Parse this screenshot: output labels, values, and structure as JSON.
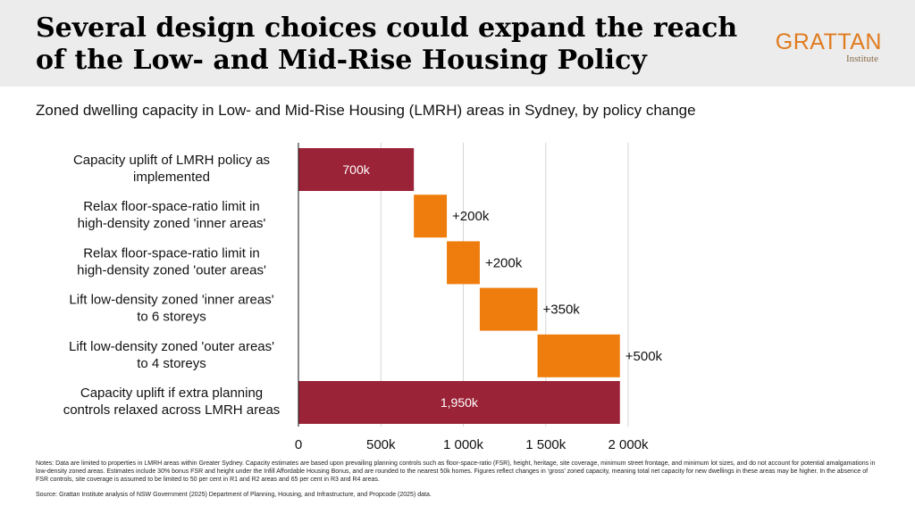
{
  "header": {
    "title": "Several design choices could expand the reach of the Low- and Mid-Rise Housing Policy",
    "logo_name": "GRATTAN",
    "logo_sub": "Institute"
  },
  "subtitle": "Zoned dwelling capacity in Low- and Mid-Rise Housing (LMRH) areas in Sydney, by policy change",
  "colors": {
    "total": "#9b2337",
    "increment": "#ef7d0d",
    "grid": "#d6d6d6"
  },
  "chart_data": {
    "type": "bar",
    "subtype": "waterfall",
    "orientation": "horizontal",
    "categories": [
      [
        "Capacity uplift of LMRH policy as",
        "implemented"
      ],
      [
        "Relax floor-space-ratio limit in",
        "high-density zoned 'inner areas'"
      ],
      [
        "Relax floor-space-ratio limit in",
        "high-density zoned 'outer areas'"
      ],
      [
        "Lift low-density zoned 'inner areas'",
        "to 6 storeys"
      ],
      [
        "Lift low-density zoned 'outer areas'",
        "to 4 storeys"
      ],
      [
        "Capacity uplift if extra planning",
        "controls relaxed across LMRH areas"
      ]
    ],
    "bars": [
      {
        "start": 0,
        "end": 700000,
        "kind": "total",
        "label": "700k"
      },
      {
        "start": 700000,
        "end": 900000,
        "kind": "increment",
        "label": "+200k"
      },
      {
        "start": 900000,
        "end": 1100000,
        "kind": "increment",
        "label": "+200k"
      },
      {
        "start": 1100000,
        "end": 1450000,
        "kind": "increment",
        "label": "+350k"
      },
      {
        "start": 1450000,
        "end": 1950000,
        "kind": "increment",
        "label": "+500k"
      },
      {
        "start": 0,
        "end": 1950000,
        "kind": "total",
        "label": "1,950k"
      }
    ],
    "xlim": [
      0,
      2000000
    ],
    "xticks": [
      0,
      500000,
      1000000,
      1500000,
      2000000
    ],
    "xtick_labels": [
      "0",
      "500k",
      "1 000k",
      "1 500k",
      "2 000k"
    ],
    "grid": true
  },
  "notes": "Notes: Data are limited to properties in LMRH areas within Greater Sydney. Capacity estimates are based upon prevailing planning controls such as floor-space-ratio (FSR), height, heritage, site coverage, minimum street frontage, and minimum lot sizes, and do not account for potential amalgamations in low-density zoned areas. Estimates include 30% bonus FSR and height under the Infill Affordable Housing Bonus, and are rounded to the nearest 50k homes. Figures reflect changes in ‘gross’ zoned capacity, meaning total net capacity for new dwellings in these areas may be higher. In the absence of FSR controls, site coverage is assumed to be limited to 50 per cent in R1 and R2 areas and 65 per cent in R3 and R4 areas.",
  "source": "Source: Grattan Institute analysis of NSW Government (2025) Department of Planning, Housing, and Infrastructure, and Propcode (2025) data."
}
